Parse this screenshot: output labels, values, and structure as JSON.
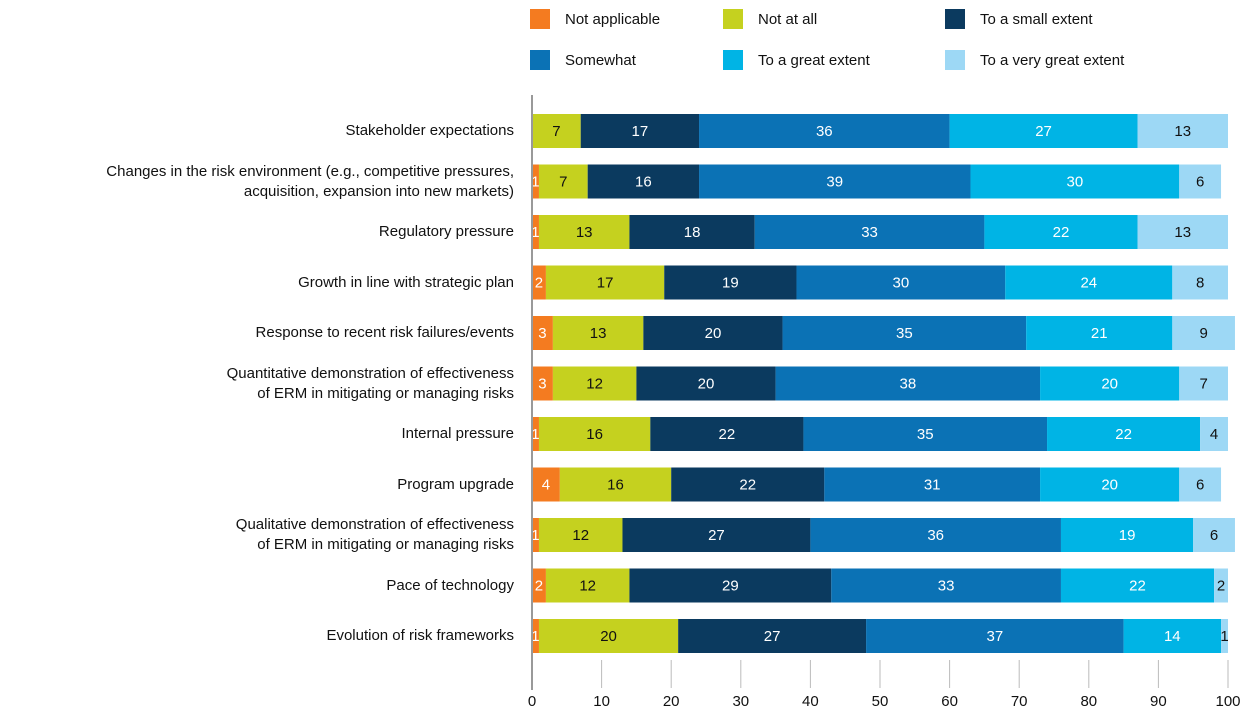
{
  "chart_data": {
    "type": "stacked_bar_horizontal",
    "categories": [
      "Stakeholder expectations",
      "Changes in the risk environment (e.g., competitive pressures,\nacquisition, expansion into new markets)",
      "Regulatory pressure",
      "Growth in line with strategic plan",
      "Response to recent risk failures/events",
      "Quantitative demonstration of effectiveness\nof ERM in mitigating or managing risks",
      "Internal pressure",
      "Program upgrade",
      "Qualitative demonstration of effectiveness\nof ERM in mitigating or managing risks",
      "Pace of technology",
      "Evolution of risk frameworks"
    ],
    "series": [
      {
        "name": "Not applicable",
        "color": "#f47b20",
        "values": [
          null,
          1,
          1,
          2,
          3,
          3,
          1,
          4,
          1,
          2,
          1
        ]
      },
      {
        "name": "Not at all",
        "color": "#c5d11f",
        "values": [
          7,
          7,
          13,
          17,
          13,
          12,
          16,
          16,
          12,
          12,
          20
        ]
      },
      {
        "name": "To a small extent",
        "color": "#0b3a5f",
        "values": [
          17,
          16,
          18,
          19,
          20,
          20,
          22,
          22,
          27,
          29,
          27
        ]
      },
      {
        "name": "Somewhat",
        "color": "#0b72b5",
        "values": [
          36,
          39,
          33,
          30,
          35,
          38,
          35,
          31,
          36,
          33,
          37
        ]
      },
      {
        "name": "To a great extent",
        "color": "#00b4e5",
        "values": [
          27,
          30,
          22,
          24,
          21,
          20,
          22,
          20,
          19,
          22,
          14
        ]
      },
      {
        "name": "To a very great extent",
        "color": "#9dd8f5",
        "values": [
          13,
          6,
          13,
          8,
          9,
          7,
          4,
          6,
          6,
          2,
          1
        ]
      }
    ],
    "xlim": [
      0,
      100
    ],
    "xticks": [
      0,
      10,
      20,
      30,
      40,
      50,
      60,
      70,
      80,
      90,
      100
    ]
  }
}
